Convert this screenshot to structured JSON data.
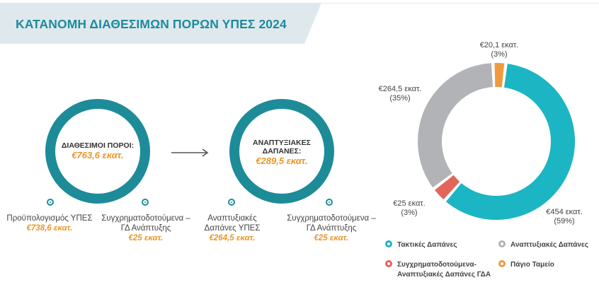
{
  "header": {
    "title": "ΚΑΤΑΝΟΜΗ ΔΙΑΘΕΣΙΜΩΝ ΠΟΡΩΝ ΥΠΕΣ 2024"
  },
  "flow": {
    "available": {
      "label": "ΔΙΑΘΕΣΙΜΟΙ ΠΟΡΟΙ:",
      "value": "€763,6 εκατ.",
      "breakdown": [
        {
          "label": "Προϋπολογισμός ΥΠΕΣ",
          "value": "€738,6 εκατ."
        },
        {
          "label_line1": "Συγχρηματοδοτούμενα –",
          "label_line2": "ΓΔ Ανάπτυξης",
          "value": "€25 εκατ."
        }
      ]
    },
    "development": {
      "label_line1": "ΑΝΑΠΤΥΞΙΑΚΕΣ",
      "label_line2": "ΔΑΠΑΝΕΣ:",
      "value": "€289,5 εκατ.",
      "breakdown": [
        {
          "label_line1": "Αναπτυξιακές",
          "label_line2": "Δαπάνες ΥΠΕΣ",
          "value": "€264,5 εκατ."
        },
        {
          "label_line1": "Συγχρηματοδοτούμενα –",
          "label_line2": "ΓΔ Ανάπτυξης",
          "value": "€25 εκατ."
        }
      ]
    }
  },
  "chart_data": {
    "type": "pie",
    "variant": "donut",
    "units": "€ εκατ.",
    "slices": [
      {
        "name": "Τακτικές Δαπάνες",
        "value": 454,
        "percent": 59,
        "value_label": "€454 εκατ.",
        "percent_label": "(59%)",
        "color": "#1cb5c4"
      },
      {
        "name": "Συγχρηματοδοτούμενα-Αναπτυξιακές Δαπάνες ΓΔΑ",
        "value": 25,
        "percent": 3,
        "value_label": "€25 εκατ.",
        "percent_label": "(3%)",
        "color": "#e2655a"
      },
      {
        "name": "Αναπτυξιακές Δαπάνες",
        "value": 264.5,
        "percent": 35,
        "value_label": "€264,5 εκατ.",
        "percent_label": "(35%)",
        "color": "#b2b3b7"
      },
      {
        "name": "Πάγιο Ταμείο",
        "value": 20.1,
        "percent": 3,
        "value_label": "€20,1 εκατ.",
        "percent_label": "(3%)",
        "color": "#f29a3f"
      }
    ],
    "legend": [
      {
        "line1": "Τακτικές Δαπάνες",
        "line2": "",
        "color": "#1cb5c4"
      },
      {
        "line1": "Αναπτυξιακές Δαπάνες",
        "line2": "",
        "color": "#b2b3b7"
      },
      {
        "line1": "Συγχρηματοδοτούμενα-",
        "line2": "Αναπτυξιακές Δαπάνες ΓΔΑ",
        "color": "#e2655a"
      },
      {
        "line1": "Πάγιο Ταμείο",
        "line2": "",
        "color": "#f29a3f"
      }
    ],
    "legend_position": "bottom"
  },
  "colors": {
    "banner": "#dce8ec",
    "ring": "#1e8b99",
    "accent_value": "#e9972b",
    "title": "#1e8a9e"
  }
}
